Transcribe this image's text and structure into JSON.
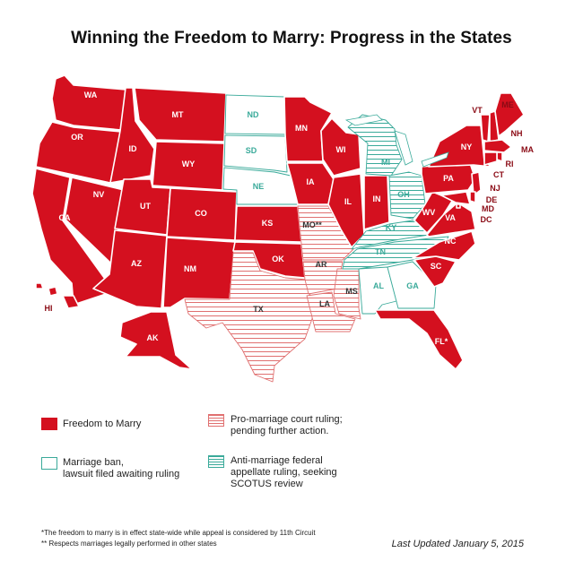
{
  "title": "Winning the Freedom to Marry: Progress in the States",
  "colors": {
    "freedom": "#d4101f",
    "court_stripe": "#e07070",
    "ban_outline": "#3aaa9a",
    "state_border": "#ffffff"
  },
  "states": {
    "WA": {
      "label": "WA",
      "status": "freedom"
    },
    "OR": {
      "label": "OR",
      "status": "freedom"
    },
    "CA": {
      "label": "CA",
      "status": "freedom"
    },
    "NV": {
      "label": "NV",
      "status": "freedom"
    },
    "ID": {
      "label": "ID",
      "status": "freedom"
    },
    "MT": {
      "label": "MT",
      "status": "freedom"
    },
    "WY": {
      "label": "WY",
      "status": "freedom"
    },
    "UT": {
      "label": "UT",
      "status": "freedom"
    },
    "CO": {
      "label": "CO",
      "status": "freedom"
    },
    "AZ": {
      "label": "AZ",
      "status": "freedom"
    },
    "NM": {
      "label": "NM",
      "status": "freedom"
    },
    "ND": {
      "label": "ND",
      "status": "ban"
    },
    "SD": {
      "label": "SD",
      "status": "ban"
    },
    "NE": {
      "label": "NE",
      "status": "ban"
    },
    "KS": {
      "label": "KS",
      "status": "freedom"
    },
    "OK": {
      "label": "OK",
      "status": "freedom"
    },
    "TX": {
      "label": "TX",
      "status": "court"
    },
    "MN": {
      "label": "MN",
      "status": "freedom"
    },
    "IA": {
      "label": "IA",
      "status": "freedom"
    },
    "MO": {
      "label": "MO**",
      "status": "court"
    },
    "AR": {
      "label": "AR",
      "status": "court"
    },
    "LA": {
      "label": "LA",
      "status": "court"
    },
    "MS": {
      "label": "MS",
      "status": "court"
    },
    "WI": {
      "label": "WI",
      "status": "freedom"
    },
    "IL": {
      "label": "IL",
      "status": "freedom"
    },
    "IN": {
      "label": "IN",
      "status": "freedom"
    },
    "MI": {
      "label": "MI",
      "status": "appeal"
    },
    "OH": {
      "label": "OH",
      "status": "appeal"
    },
    "KY": {
      "label": "KY",
      "status": "appeal"
    },
    "TN": {
      "label": "TN",
      "status": "appeal"
    },
    "AL": {
      "label": "AL",
      "status": "ban"
    },
    "GA": {
      "label": "GA",
      "status": "ban"
    },
    "FL": {
      "label": "FL*",
      "status": "freedom"
    },
    "SC": {
      "label": "SC",
      "status": "freedom"
    },
    "NC": {
      "label": "NC",
      "status": "freedom"
    },
    "VA": {
      "label": "VA",
      "status": "freedom"
    },
    "WV": {
      "label": "WV",
      "status": "freedom"
    },
    "PA": {
      "label": "PA",
      "status": "freedom"
    },
    "NY": {
      "label": "NY",
      "status": "freedom"
    },
    "VT": {
      "label": "VT",
      "status": "freedom"
    },
    "NH": {
      "label": "NH",
      "status": "freedom"
    },
    "ME": {
      "label": "ME",
      "status": "freedom"
    },
    "MA": {
      "label": "MA",
      "status": "freedom"
    },
    "RI": {
      "label": "RI",
      "status": "freedom"
    },
    "CT": {
      "label": "CT",
      "status": "freedom"
    },
    "NJ": {
      "label": "NJ",
      "status": "freedom"
    },
    "DE": {
      "label": "DE",
      "status": "freedom"
    },
    "MD": {
      "label": "MD",
      "status": "freedom"
    },
    "DC": {
      "label": "DC",
      "status": "freedom"
    },
    "AK": {
      "label": "AK",
      "status": "freedom"
    },
    "HI": {
      "label": "HI",
      "status": "freedom"
    }
  },
  "legend": {
    "freedom": "Freedom to Marry",
    "court_line1": "Pro-marriage court ruling;",
    "court_line2": "pending further action.",
    "ban_line1": "Marriage ban,",
    "ban_line2": "lawsuit filed awaiting ruling",
    "appeal_line1": "Anti-marriage federal",
    "appeal_line2": "appellate ruling, seeking",
    "appeal_line3": "SCOTUS review"
  },
  "footnotes": {
    "note1": "*The freedom to marry is in effect state-wide while appeal is considered by 11th Circuit",
    "note2": "** Respects marriages legally performed in other states"
  },
  "last_updated": "Last Updated January 5, 2015"
}
